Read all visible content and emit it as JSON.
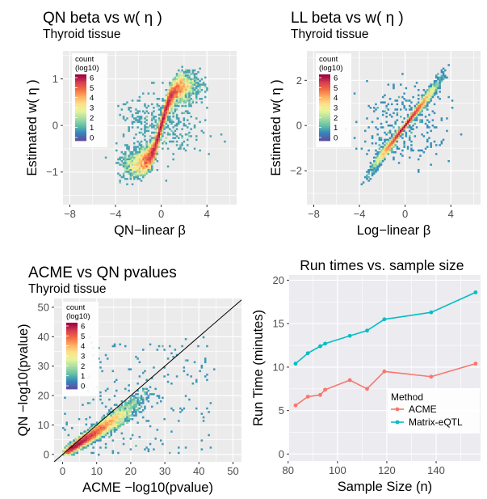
{
  "chart_data": [
    {
      "type": "heatmap",
      "title": "QN beta vs w( η )",
      "subtitle": "Thyroid tissue",
      "xlabel": "QN−linear β",
      "ylabel": "Estimated w( η )",
      "xticks": [
        -8,
        -4,
        0,
        4
      ],
      "yticks": [
        -1,
        0,
        1
      ],
      "xlim": [
        -8.6,
        6.6
      ],
      "ylim": [
        -1.7,
        1.6
      ],
      "legend": {
        "title": [
          "count",
          "(log10)"
        ],
        "ticks": [
          6,
          5,
          4,
          3,
          2,
          1,
          0
        ],
        "placement": "top-left"
      },
      "grid": true,
      "shape": "s-curve",
      "colors": [
        "#5e4fa2",
        "#3288bd",
        "#66c2a5",
        "#abdda4",
        "#e6f598",
        "#fee08b",
        "#fdae61",
        "#f46d43",
        "#d53e4f",
        "#9e0142"
      ]
    },
    {
      "type": "heatmap",
      "title": "LL beta vs w( η )",
      "subtitle": "Thyroid tissue",
      "xlabel": "Log−linear β",
      "ylabel": "Estimated w( η )",
      "xticks": [
        -8,
        -4,
        0,
        4
      ],
      "yticks": [
        -2,
        0,
        2
      ],
      "xlim": [
        -8.6,
        6.6
      ],
      "ylim": [
        -3.5,
        3.3
      ],
      "legend": {
        "title": [
          "count",
          "(log10)"
        ],
        "ticks": [
          6,
          5,
          4,
          3,
          2,
          1,
          0
        ],
        "placement": "top-left"
      },
      "grid": true,
      "shape": "linear-fan"
    },
    {
      "type": "heatmap",
      "title": "ACME vs QN pvalues",
      "subtitle": "Thyroid tissue",
      "xlabel": "ACME −log10(pvalue)",
      "ylabel": "QN −log10(pvalue)",
      "xticks": [
        0,
        10,
        20,
        30,
        40,
        50
      ],
      "yticks": [
        0,
        10,
        20,
        30,
        40,
        50
      ],
      "xlim": [
        -2.5,
        52.5
      ],
      "ylim": [
        -2.5,
        53
      ],
      "legend": {
        "title": [
          "count",
          "(log10)"
        ],
        "ticks": [
          6,
          5,
          4,
          3,
          2,
          1,
          0
        ],
        "placement": "top-left"
      },
      "grid": true,
      "reference_line": "y = x",
      "shape": "diagonal-cloud"
    },
    {
      "type": "line",
      "title": "Run times vs. sample size",
      "xlabel": "Sample Size (n)",
      "ylabel": "Run Time (minutes)",
      "xticks": [
        80,
        100,
        120,
        140
      ],
      "yticks": [
        0,
        5,
        10,
        15,
        20
      ],
      "xlim": [
        80.4,
        158
      ],
      "ylim": [
        -0.8,
        20.6
      ],
      "legend": {
        "title": "Method",
        "placement": "bottom-right"
      },
      "grid": true,
      "series": [
        {
          "name": "ACME",
          "color": "#f8766d",
          "x": [
            83,
            88,
            93,
            95,
            105,
            112,
            119,
            138,
            156
          ],
          "y": [
            5.6,
            6.6,
            6.8,
            7.4,
            8.5,
            7.5,
            9.5,
            8.9,
            10.4
          ]
        },
        {
          "name": "Matrix-eQTL",
          "color": "#00bfc4",
          "x": [
            83,
            88,
            93,
            95,
            105,
            112,
            119,
            138,
            156
          ],
          "y": [
            10.4,
            11.6,
            12.4,
            12.7,
            13.6,
            14.2,
            15.5,
            16.3,
            18.6
          ]
        }
      ]
    }
  ]
}
